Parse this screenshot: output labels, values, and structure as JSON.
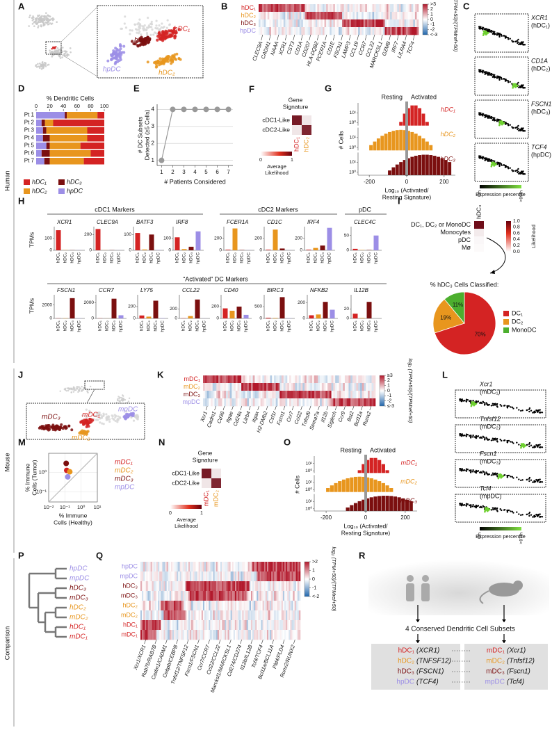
{
  "colors": {
    "dc1": "#d42323",
    "dc2": "#e8961e",
    "dc3": "#7b0f0f",
    "pdc": "#9c8ee6",
    "mono": "#4caf2e"
  },
  "sections": [
    "Human",
    "Mouse",
    "Comparison"
  ],
  "panels": {
    "A": {
      "letter": "A",
      "labels": [
        {
          "text": "hDC₁",
          "c": "dc1"
        },
        {
          "text": "hDC₃",
          "c": "dc3"
        },
        {
          "text": "hpDC",
          "c": "pdc"
        },
        {
          "text": "hDC₂",
          "c": "dc2"
        }
      ]
    },
    "B": {
      "letter": "B",
      "rows": [
        {
          "text": "hDC₁",
          "c": "dc1"
        },
        {
          "text": "hDC₂",
          "c": "dc2"
        },
        {
          "text": "hDC₃",
          "c": "dc3"
        },
        {
          "text": "hpDC",
          "c": "pdc"
        }
      ],
      "genes": [
        "CLEC9A",
        "CADM1",
        "NAAA",
        "XCR1",
        "CST3",
        "CD1A",
        "CD207",
        "HLA-DQB2",
        "FCER1A",
        "CD1E",
        "FSCN1",
        "LAMP3",
        "CCL19",
        "CCR7",
        "CCL22",
        "MARCKSL1",
        "GZMB",
        "IRF7",
        "LILRA4",
        "TCF4"
      ],
      "scale_ticks": [
        {
          "value": 3,
          "label": ">3"
        },
        2,
        1,
        0,
        -1,
        -2,
        {
          "value": -3,
          "label": "<-3"
        }
      ],
      "scale_label": "log₂ (TPM+50)/(TPMref+50)"
    },
    "C": {
      "letter": "C",
      "items": [
        {
          "gene": "XCR1",
          "subset": "(hDC₁)"
        },
        {
          "gene": "CD1A",
          "subset": "(hDC₂)"
        },
        {
          "gene": "FSCN1",
          "subset": "(hDC₃)"
        },
        {
          "gene": "TCF4",
          "subset": "(hpDC)"
        }
      ],
      "scale_label": "Expression percentile",
      "scale_low": "0th",
      "scale_high": ">99th"
    },
    "D": {
      "letter": "D",
      "title": "% Dendritic Cells",
      "xticks": [
        0,
        20,
        40,
        60,
        80,
        100
      ],
      "xlim": [
        0,
        100
      ],
      "patients": [
        "Pt 1",
        "Pt 2",
        "Pt 3",
        "Pt 4",
        "Pt 5",
        "Pt 6",
        "Pt 7"
      ],
      "series": [
        {
          "name": "hDC₁",
          "c": "dc1",
          "values": [
            10,
            75,
            25,
            25,
            35,
            20,
            30
          ]
        },
        {
          "name": "hDC₃",
          "c": "dc3",
          "values": [
            3,
            5,
            5,
            10,
            5,
            12,
            8
          ]
        },
        {
          "name": "hDC₂",
          "c": "dc2",
          "values": [
            45,
            12,
            60,
            55,
            45,
            60,
            50
          ]
        },
        {
          "name": "hpDC",
          "c": "pdc",
          "values": [
            42,
            8,
            10,
            10,
            15,
            8,
            12
          ]
        }
      ]
    },
    "E": {
      "letter": "E",
      "ylabel": [
        "# DC Subsets",
        "Detected (≥5 Cells)"
      ],
      "xlabel": "# Patients Considered",
      "x": [
        1,
        2,
        3,
        4,
        5,
        6,
        7
      ],
      "values": [
        1,
        4,
        4,
        4,
        4,
        4,
        4
      ],
      "xticks": [
        1,
        2,
        3,
        4,
        5,
        6,
        7
      ],
      "yticks": [
        1,
        2,
        3,
        4
      ],
      "xlim": [
        0.6,
        7.4
      ],
      "ylim": [
        0.7,
        4.3
      ]
    },
    "F": {
      "letter": "F",
      "title": [
        "Gene",
        "Signature"
      ],
      "rows": [
        "cDC1-Like",
        "cDC2-Like"
      ],
      "cols": [
        {
          "text": "hDC₁",
          "c": "dc1"
        },
        {
          "text": "hDC₂",
          "c": "dc2"
        }
      ],
      "values": [
        [
          0.9,
          0.1
        ],
        [
          0.1,
          0.85
        ]
      ],
      "scale_label": [
        "Average",
        "Likelihood"
      ],
      "scale_ticks": [
        0,
        1
      ]
    },
    "G": {
      "letter": "G",
      "left": "Resting",
      "right": "Activated",
      "ylabel": "# Cells",
      "xlabel": [
        "Log₁₀ (Activated/",
        "Resting Signature)"
      ],
      "xticks": [
        -200,
        0,
        200
      ],
      "xlim": [
        -260,
        260
      ],
      "yticks": [
        {
          "value": 1,
          "label": "10⁰"
        },
        {
          "value": 10,
          "label": "10¹"
        }
      ],
      "strips": [
        {
          "text": "hDC₁",
          "c": "dc1"
        },
        {
          "text": "hDC₂",
          "c": "dc2"
        },
        {
          "text": "hDC₃",
          "c": "dc3"
        }
      ]
    },
    "H": {
      "letter": "H",
      "ylabel": "TPMs",
      "groups": [
        "cDC1 Markers",
        "cDC2 Markers",
        "pDC",
        "“Activated” DC Markers"
      ],
      "categories": [
        {
          "text": "hDC₁",
          "c": "dc1"
        },
        {
          "text": "hDC₂",
          "c": "dc2"
        },
        {
          "text": "hDC₃",
          "c": "dc3"
        },
        {
          "text": "hpDC",
          "c": "pdc"
        }
      ],
      "top": [
        {
          "gene": "XCR1",
          "ylim": [
            0,
            200
          ],
          "yticks": [
            0,
            100
          ],
          "values": [
            170,
            2,
            1,
            1
          ]
        },
        {
          "gene": "CLEC9A",
          "ylim": [
            0,
            300
          ],
          "yticks": [
            0,
            200
          ],
          "values": [
            270,
            2,
            2,
            1
          ]
        },
        {
          "gene": "BATF3",
          "ylim": [
            0,
            150
          ],
          "yticks": [
            0,
            100
          ],
          "values": [
            110,
            5,
            100,
            2
          ]
        },
        {
          "gene": "IRF8",
          "ylim": [
            0,
            200
          ],
          "yticks": [
            0,
            100
          ],
          "values": [
            110,
            10,
            30,
            160
          ]
        },
        {
          "gene": "FCER1A",
          "ylim": [
            0,
            400
          ],
          "yticks": [
            0,
            200
          ],
          "values": [
            10,
            370,
            5,
            2
          ]
        },
        {
          "gene": "CD1C",
          "ylim": [
            0,
            400
          ],
          "yticks": [
            0,
            200
          ],
          "values": [
            10,
            350,
            30,
            2
          ]
        },
        {
          "gene": "IRF4",
          "ylim": [
            0,
            400
          ],
          "yticks": [
            0,
            200
          ],
          "values": [
            10,
            40,
            80,
            380
          ]
        },
        {
          "gene": "CLEC4C",
          "ylim": [
            0,
            80
          ],
          "yticks": [
            0,
            50
          ],
          "values": [
            5,
            1,
            1,
            50
          ]
        }
      ],
      "bottom": [
        {
          "gene": "FSCN1",
          "ylim": [
            0,
            3500
          ],
          "yticks": [
            0,
            2000
          ],
          "values": [
            30,
            40,
            3000,
            30
          ]
        },
        {
          "gene": "CCR7",
          "ylim": [
            0,
            3000
          ],
          "yticks": [
            0,
            2000
          ],
          "values": [
            20,
            10,
            2500,
            400
          ]
        },
        {
          "gene": "LY75",
          "ylim": [
            0,
            400
          ],
          "yticks": [
            0,
            200
          ],
          "values": [
            50,
            30,
            300,
            5
          ]
        },
        {
          "gene": "CCL22",
          "ylim": [
            0,
            500
          ],
          "yticks": [
            0,
            200
          ],
          "values": [
            5,
            50,
            400,
            2
          ]
        },
        {
          "gene": "CD40",
          "ylim": [
            0,
            400
          ],
          "yticks": [
            0,
            200
          ],
          "values": [
            170,
            130,
            200,
            60
          ]
        },
        {
          "gene": "BIRC3",
          "ylim": [
            0,
            1000
          ],
          "yticks": [
            0,
            500
          ],
          "values": [
            30,
            20,
            900,
            10
          ]
        },
        {
          "gene": "NFKB2",
          "ylim": [
            0,
            300
          ],
          "yticks": [
            0,
            200
          ],
          "values": [
            40,
            50,
            210,
            110
          ]
        },
        {
          "gene": "IL12B",
          "ylim": [
            0,
            50
          ],
          "yticks": [
            0,
            20
          ],
          "values": [
            10,
            1,
            35,
            0
          ]
        }
      ]
    },
    "I": {
      "letter": "I",
      "col": "hDC₃",
      "rows": [
        "DC₁, DC₂ or MonoDC",
        "Monocytes",
        "pDC",
        "Mø"
      ],
      "values": [
        0.95,
        0.08,
        0.03,
        0.02
      ],
      "scale_label": "Likelihood",
      "scale_ticks": [
        {
          "value": 0,
          "label": "0.0"
        },
        0.2,
        0.4,
        0.6,
        0.8,
        {
          "value": 1,
          "label": "1.0"
        }
      ],
      "pie_title": "% hDC₃ Cells Classified:",
      "pie": [
        {
          "name": "DC₁",
          "c": "dc1",
          "value": 70,
          "value_label": "70%"
        },
        {
          "name": "DC₂",
          "c": "dc2",
          "value": 19,
          "value_label": "19%"
        },
        {
          "name": "MonoDC",
          "c": "mono",
          "value": 11,
          "value_label": "11%"
        }
      ]
    },
    "J": {
      "letter": "J",
      "labels": [
        {
          "text": "mDC₃",
          "c": "dc3"
        },
        {
          "text": "mDC₁",
          "c": "dc1"
        },
        {
          "text": "mpDC",
          "c": "pdc"
        },
        {
          "text": "mDC₂",
          "c": "dc2"
        }
      ]
    },
    "K": {
      "letter": "K",
      "rows": [
        {
          "text": "mDC₁",
          "c": "dc1"
        },
        {
          "text": "mDC₂",
          "c": "dc2"
        },
        {
          "text": "mDC₃",
          "c": "dc3"
        },
        {
          "text": "mpDC",
          "c": "pdc"
        }
      ],
      "genes": [
        "Xcr1",
        "Cadm1",
        "Cd36",
        "Itgae",
        "Cd24a",
        "Lilrb4",
        "Itgax",
        "H2-DMb2",
        "Csf1r",
        "Fscn1",
        "Ccr7",
        "Ccl22",
        "Tnfrsf9",
        "Sema7a",
        "Il12b",
        "Siglech",
        "Ccr9",
        "Bst2",
        "Bcl11a",
        "Runx2"
      ],
      "scale_ticks": [
        {
          "value": 3,
          "label": "≥3"
        },
        2,
        1,
        0,
        -1,
        -2,
        {
          "value": -3,
          "label": "≤-3"
        }
      ],
      "scale_label": "log₂ (TPM+50)/(TPMref+50)"
    },
    "L": {
      "letter": "L",
      "items": [
        {
          "gene": "Xcr1",
          "subset": "(mDC₁)"
        },
        {
          "gene": "Tnfsf12",
          "subset": "(mDC₂)"
        },
        {
          "gene": "Fscn1",
          "subset": "(mDC₃)"
        },
        {
          "gene": "Tcf4",
          "subset": "(mpDC)"
        }
      ],
      "scale_label": "Expression percentile",
      "scale_low": "0th",
      "scale_high": ">97th"
    },
    "M": {
      "letter": "M",
      "ylabel": [
        "% Immune",
        "Cells (Tumor)"
      ],
      "xlabel": [
        "% Immune",
        "Cells (Healthy)"
      ],
      "xlim": [
        0.01,
        10
      ],
      "ylim": [
        0.03,
        10
      ],
      "xticks": [
        {
          "value": 0.01,
          "label": "10⁻²"
        },
        {
          "value": 0.1,
          "label": "10⁻¹"
        },
        {
          "value": 1,
          "label": "10⁰"
        },
        {
          "value": 10,
          "label": "10¹"
        }
      ],
      "yticks": [
        {
          "value": 0.1,
          "label": "10⁻¹"
        },
        {
          "value": 1,
          "label": "10⁰"
        }
      ],
      "points": [
        {
          "name": "mDC₁",
          "c": "dc1",
          "x": 0.13,
          "y": 1.3
        },
        {
          "name": "mDC₂",
          "c": "dc2",
          "x": 0.2,
          "y": 1.1
        },
        {
          "name": "mDC₃",
          "c": "dc3",
          "x": 0.12,
          "y": 3
        },
        {
          "name": "mpDC",
          "c": "pdc",
          "x": 0.15,
          "y": 0.6
        }
      ]
    },
    "N": {
      "letter": "N",
      "title": [
        "Gene",
        "Signature"
      ],
      "rows": [
        "cDC1-Like",
        "cDC2-Like"
      ],
      "cols": [
        {
          "text": "mDC₁",
          "c": "dc1"
        },
        {
          "text": "mDC₂",
          "c": "dc2"
        }
      ],
      "values": [
        [
          0.9,
          0.1
        ],
        [
          0.1,
          0.85
        ]
      ],
      "scale_label": [
        "Average",
        "Likelihood"
      ],
      "scale_ticks": [
        0,
        1
      ]
    },
    "O": {
      "letter": "O",
      "left": "Resting",
      "right": "Activated",
      "ylabel": "# Cells",
      "xlabel": [
        "Log₁₀ (Activated/",
        "Resting Signature)"
      ],
      "xticks": [
        -200,
        0,
        200
      ],
      "xlim": [
        -260,
        260
      ],
      "yticks": [
        {
          "value": 1,
          "label": "10⁰"
        },
        {
          "value": 10,
          "label": "10¹"
        }
      ],
      "strips": [
        {
          "text": "mDC₁",
          "c": "dc1"
        },
        {
          "text": "mDC₂",
          "c": "dc2"
        },
        {
          "text": "mDC₃",
          "c": "dc3"
        }
      ]
    },
    "P": {
      "letter": "P",
      "leaves": [
        {
          "text": "hpDC",
          "c": "pdc"
        },
        {
          "text": "mpDC",
          "c": "pdc"
        },
        {
          "text": "hDC₃",
          "c": "dc3"
        },
        {
          "text": "mDC₃",
          "c": "dc3"
        },
        {
          "text": "hDC₂",
          "c": "dc2"
        },
        {
          "text": "mDC₂",
          "c": "dc2"
        },
        {
          "text": "hDC₁",
          "c": "dc1"
        },
        {
          "text": "mDC₁",
          "c": "dc1"
        }
      ]
    },
    "Q": {
      "letter": "Q",
      "rows": [
        {
          "text": "hpDC",
          "c": "pdc"
        },
        {
          "text": "mpDC",
          "c": "pdc"
        },
        {
          "text": "hDC₃",
          "c": "dc3"
        },
        {
          "text": "mDC₃",
          "c": "dc3"
        },
        {
          "text": "hDC₂",
          "c": "dc2"
        },
        {
          "text": "mDC₂",
          "c": "dc2"
        },
        {
          "text": "hDC₁",
          "c": "dc1"
        },
        {
          "text": "mDC₁",
          "c": "dc1"
        }
      ],
      "genes": [
        "Xcr1/XCR1",
        "Rab7b/RAB7B",
        "Cadm1/CADM1",
        "Cebpb/CEBPB",
        "Tnfsf12/TNFSF12",
        "Fscn1/FSCN1",
        "Ccr7/CCR7",
        "Ccl22/CCL22",
        "Marcksl1/MARCKSL1",
        "Cd274/CD274",
        "Il12b/IL12B",
        "Tcf4/TCF4",
        "Bcl11a/BCL11A",
        "Pld4/PLD4",
        "Runx2/RUNX2"
      ],
      "scale_ticks": [
        {
          "value": 2,
          "label": ">2"
        },
        1,
        0,
        -1,
        {
          "value": -2,
          "label": "<-2"
        }
      ],
      "scale_label": "log₂ (TPM+50)/(TPMref+50)"
    },
    "R": {
      "letter": "R",
      "title": "4 Conserved Dendritic Cell Subsets",
      "human": [
        {
          "subset": "hDC₁",
          "marker": "(XCR1)",
          "c": "dc1"
        },
        {
          "subset": "hDC₂",
          "marker": "(TNFSF12)",
          "c": "dc2"
        },
        {
          "subset": "hDC₃",
          "marker": "(FSCN1)",
          "c": "dc3"
        },
        {
          "subset": "hpDC",
          "marker": "(TCF4)",
          "c": "pdc"
        }
      ],
      "mouse": [
        {
          "subset": "mDC₁",
          "marker": "(Xcr1)",
          "c": "dc1"
        },
        {
          "subset": "mDC₂",
          "marker": "(Tnfsf12)",
          "c": "dc2"
        },
        {
          "subset": "mDC₃",
          "marker": "(Fscn1)",
          "c": "dc3"
        },
        {
          "subset": "mpDC",
          "marker": "(Tcf4)",
          "c": "pdc"
        }
      ]
    }
  }
}
